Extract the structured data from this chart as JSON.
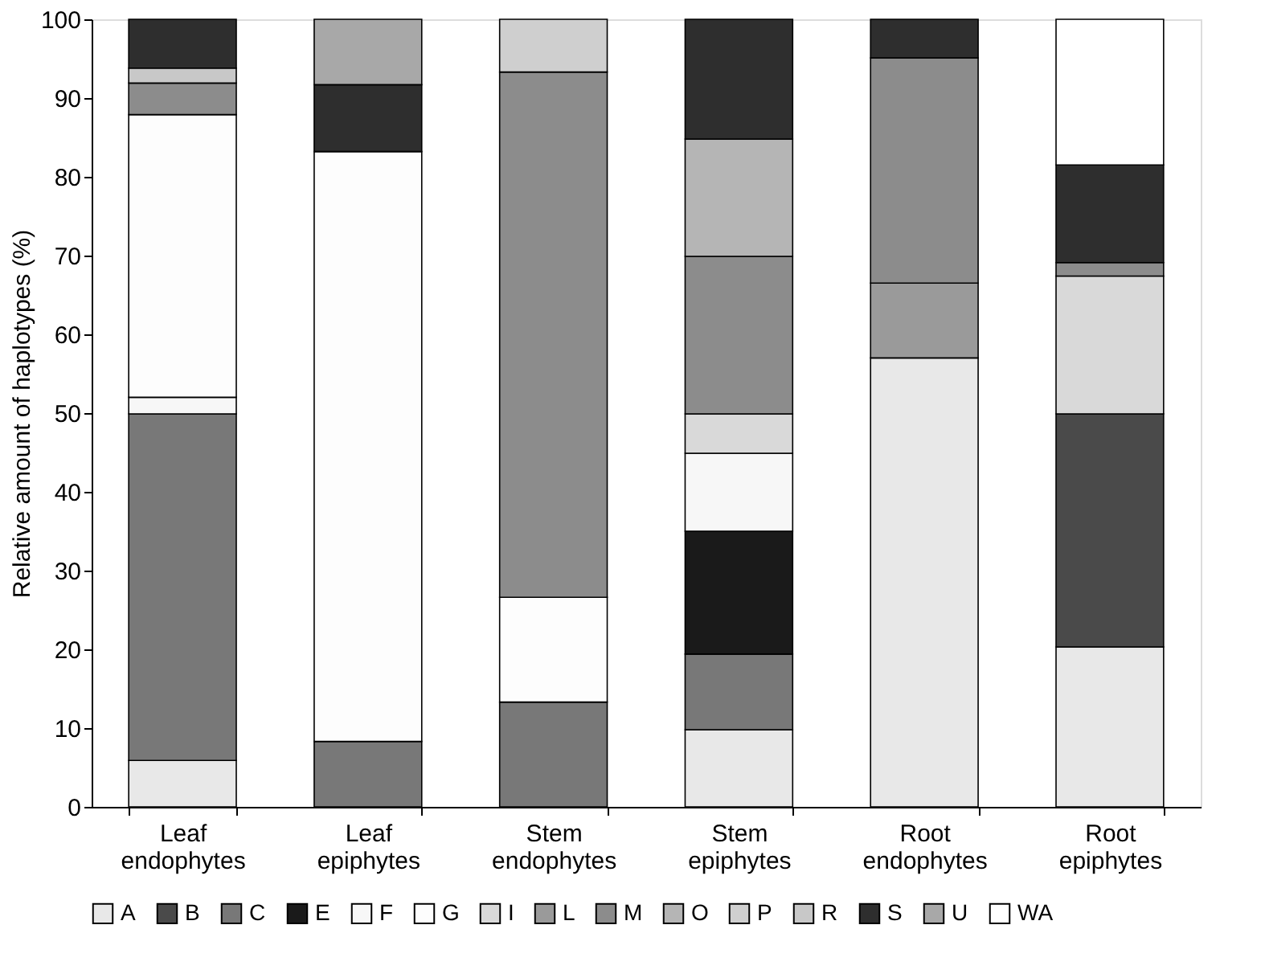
{
  "chart_data": {
    "type": "bar",
    "stacked": true,
    "ylabel": "Relative amount of haplotypes (%)",
    "categories": [
      "Leaf endophytes",
      "Leaf epiphytes",
      "Stem endophytes",
      "Stem epiphytes",
      "Root endophytes",
      "Root epiphytes"
    ],
    "ylim": [
      0,
      100
    ],
    "yticks": [
      0,
      10,
      20,
      30,
      40,
      50,
      60,
      70,
      80,
      90,
      100
    ],
    "grid": false,
    "legend": "bottom",
    "series": [
      {
        "name": "A",
        "color": "#e8e8e8",
        "values": [
          5.9,
          null,
          null,
          9.8,
          57,
          20.3
        ]
      },
      {
        "name": "B",
        "color": "#4a4a4a",
        "values": [
          null,
          null,
          null,
          null,
          null,
          29.6
        ]
      },
      {
        "name": "C",
        "color": "#787878",
        "values": [
          44,
          8.3,
          13.3,
          9.6,
          null,
          null
        ]
      },
      {
        "name": "E",
        "color": "#1a1a1a",
        "values": [
          null,
          null,
          null,
          15.6,
          null,
          null
        ]
      },
      {
        "name": "F",
        "color": "#f7f7f7",
        "values": [
          2.1,
          null,
          null,
          9.9,
          null,
          null
        ]
      },
      {
        "name": "G",
        "color": "#fdfdfd",
        "values": [
          35.9,
          74.9,
          13.3,
          null,
          null,
          null
        ]
      },
      {
        "name": "I",
        "color": "#d9d9d9",
        "values": [
          null,
          null,
          null,
          5,
          null,
          17.5
        ]
      },
      {
        "name": "L",
        "color": "#9a9a9a",
        "values": [
          null,
          null,
          null,
          null,
          9.5,
          null
        ]
      },
      {
        "name": "M",
        "color": "#8c8c8c",
        "values": [
          4,
          null,
          66.7,
          20,
          28.6,
          1.7
        ]
      },
      {
        "name": "O",
        "color": "#b5b5b5",
        "values": [
          null,
          null,
          null,
          14.9,
          null,
          null
        ]
      },
      {
        "name": "P",
        "color": "#cfcfcf",
        "values": [
          null,
          null,
          6.7,
          null,
          null,
          null
        ]
      },
      {
        "name": "R",
        "color": "#c8c8c8",
        "values": [
          1.9,
          null,
          null,
          null,
          null,
          null
        ]
      },
      {
        "name": "S",
        "color": "#2e2e2e",
        "values": [
          6.2,
          8.5,
          null,
          15.2,
          4.9,
          12.4
        ]
      },
      {
        "name": "U",
        "color": "#a8a8a8",
        "values": [
          null,
          8.3,
          null,
          null,
          null,
          null
        ]
      },
      {
        "name": "WA",
        "color": "#ffffff",
        "values": [
          null,
          null,
          null,
          null,
          null,
          18.5
        ]
      }
    ]
  }
}
